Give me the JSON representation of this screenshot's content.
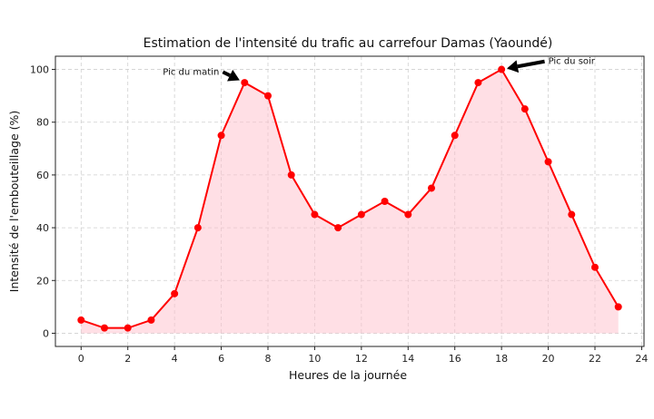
{
  "chart_data": {
    "type": "line",
    "title": "Estimation de l'intensité du trafic au carrefour Damas (Yaoundé)",
    "xlabel": "Heures de la journée",
    "ylabel": "Intensité de l'embouteillage (%)",
    "xlim": [
      -1.1,
      24.1
    ],
    "ylim": [
      -5,
      105
    ],
    "xticks": [
      0,
      2,
      4,
      6,
      8,
      10,
      12,
      14,
      16,
      18,
      20,
      22,
      24
    ],
    "yticks": [
      0,
      20,
      40,
      60,
      80,
      100
    ],
    "grid": true,
    "x": [
      0,
      1,
      2,
      3,
      4,
      5,
      6,
      7,
      8,
      9,
      10,
      11,
      12,
      13,
      14,
      15,
      16,
      17,
      18,
      19,
      20,
      21,
      22,
      23
    ],
    "series": [
      {
        "values": [
          5,
          2,
          2,
          5,
          15,
          40,
          75,
          95,
          90,
          60,
          45,
          40,
          45,
          50,
          45,
          55,
          75,
          95,
          100,
          85,
          65,
          45,
          25,
          10
        ],
        "color": "#ff0000",
        "fill_color": "#ffc0cb"
      }
    ],
    "annotations": [
      {
        "text": "Pic du matin",
        "x": 7,
        "y": 95,
        "text_x": 3.5,
        "text_y": 98
      },
      {
        "text": "Pic du soir",
        "x": 18,
        "y": 100,
        "text_x": 20,
        "text_y": 102
      }
    ]
  }
}
